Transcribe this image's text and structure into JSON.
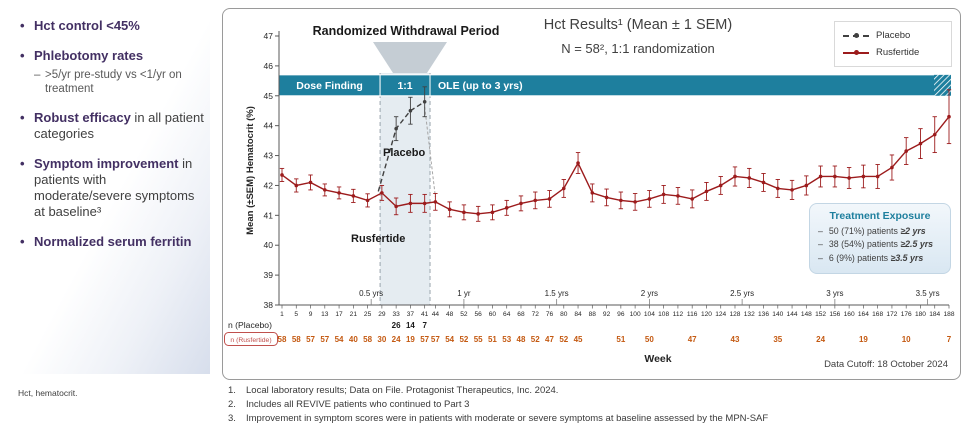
{
  "sidebar": {
    "bullets": [
      {
        "bold": "Hct control <45%",
        "rest": ""
      },
      {
        "bold": "Phlebotomy rates",
        "rest": "",
        "sub": ">5/yr pre-study vs <1/yr on treatment"
      },
      {
        "bold": "Robust efficacy",
        "rest": " in all patient categories"
      },
      {
        "bold": "Symptom improvement",
        "rest": " in patients with moderate/severe symptoms at baseline³"
      },
      {
        "bold": "Normalized serum ferritin",
        "rest": ""
      }
    ],
    "abbreviation": "Hct, hematocrit."
  },
  "chart": {
    "withdrawal_label": "Randomized Withdrawal Period",
    "legend": [
      {
        "name": "Placebo",
        "color": "#404040",
        "style": "dashed"
      },
      {
        "name": "Rusfertide",
        "color": "#9c1b1c",
        "style": "solid"
      }
    ],
    "annotations": {
      "placebo": "Placebo",
      "rusfertide": "Rusfertide"
    },
    "exposure": {
      "title": "Treatment Exposure",
      "items": [
        {
          "dash": "–",
          "text": "50 (71%) patients ",
          "em": "≥2 yrs"
        },
        {
          "dash": "–",
          "text": "38 (54%) patients ",
          "em": "≥2.5 yrs"
        },
        {
          "dash": "–",
          "text": "6 (9%) patients ",
          "em": "≥3.5 yrs"
        }
      ]
    }
  },
  "chart_data": {
    "type": "line",
    "title": "Hct Results¹ (Mean ± 1 SEM)",
    "subtitle": "N = 58², 1:1 randomization",
    "xlabel": "Week",
    "ylabel": "Mean (±SEM) Hematocrit (%)",
    "ylim": [
      38,
      47
    ],
    "y_ticks": [
      38,
      39,
      40,
      41,
      42,
      43,
      44,
      45,
      46,
      47
    ],
    "x_ticks": [
      1,
      5,
      9,
      13,
      17,
      21,
      25,
      29,
      33,
      37,
      41,
      44,
      48,
      52,
      56,
      60,
      64,
      68,
      72,
      76,
      80,
      84,
      88,
      92,
      96,
      100,
      104,
      108,
      112,
      116,
      120,
      124,
      128,
      132,
      136,
      140,
      144,
      148,
      152,
      156,
      160,
      164,
      168,
      172,
      176,
      180,
      184,
      188
    ],
    "year_marks": [
      [
        26,
        "0.5 yrs"
      ],
      [
        52,
        "1 yr"
      ],
      [
        78,
        "1.5 yrs"
      ],
      [
        104,
        "2 yrs"
      ],
      [
        130,
        "2.5 yrs"
      ],
      [
        156,
        "3 yrs"
      ],
      [
        182,
        "3.5 yrs"
      ]
    ],
    "phase_bar": {
      "color": "#1e7f9e",
      "y_range": [
        45.0,
        45.7
      ],
      "segments": [
        {
          "label": "Dose Finding",
          "start": 0,
          "end": 28.5,
          "align": "center"
        },
        {
          "label": "1:1",
          "start": 28.5,
          "end": 42.5,
          "align": "center"
        },
        {
          "label": "OLE (up to 3 yrs)",
          "start": 42.5,
          "end": 190,
          "align": "left"
        }
      ]
    },
    "withdrawal_region": {
      "start": 28.5,
      "end": 42.5
    },
    "series": [
      {
        "name": "Placebo",
        "color": "#404040",
        "dashed": true,
        "points": [
          [
            28,
            41.8,
            0
          ],
          [
            33,
            43.9,
            0.4
          ],
          [
            37,
            44.5,
            0.45
          ],
          [
            41,
            44.8,
            0.5
          ]
        ]
      },
      {
        "name": "Rusfertide",
        "color": "#9c1b1c",
        "dashed": false,
        "points": [
          [
            1,
            42.35,
            0.22
          ],
          [
            5,
            42.0,
            0.22
          ],
          [
            9,
            42.1,
            0.25
          ],
          [
            13,
            41.85,
            0.2
          ],
          [
            17,
            41.75,
            0.2
          ],
          [
            21,
            41.65,
            0.22
          ],
          [
            25,
            41.5,
            0.22
          ],
          [
            29,
            41.75,
            0.25
          ],
          [
            33,
            41.3,
            0.28
          ],
          [
            37,
            41.4,
            0.3
          ],
          [
            41,
            41.4,
            0.3
          ],
          [
            44,
            41.45,
            0.28
          ],
          [
            48,
            41.2,
            0.25
          ],
          [
            52,
            41.1,
            0.25
          ],
          [
            56,
            41.05,
            0.25
          ],
          [
            60,
            41.1,
            0.25
          ],
          [
            64,
            41.25,
            0.25
          ],
          [
            68,
            41.4,
            0.25
          ],
          [
            72,
            41.5,
            0.28
          ],
          [
            76,
            41.55,
            0.28
          ],
          [
            80,
            41.9,
            0.3
          ],
          [
            84,
            42.75,
            0.35
          ],
          [
            88,
            41.75,
            0.3
          ],
          [
            92,
            41.6,
            0.28
          ],
          [
            96,
            41.5,
            0.28
          ],
          [
            100,
            41.45,
            0.28
          ],
          [
            104,
            41.55,
            0.28
          ],
          [
            108,
            41.7,
            0.3
          ],
          [
            112,
            41.65,
            0.28
          ],
          [
            116,
            41.55,
            0.3
          ],
          [
            120,
            41.8,
            0.3
          ],
          [
            124,
            42.0,
            0.3
          ],
          [
            128,
            42.3,
            0.32
          ],
          [
            132,
            42.25,
            0.32
          ],
          [
            136,
            42.1,
            0.3
          ],
          [
            140,
            41.9,
            0.3
          ],
          [
            144,
            41.85,
            0.32
          ],
          [
            148,
            42.0,
            0.32
          ],
          [
            152,
            42.3,
            0.35
          ],
          [
            156,
            42.3,
            0.35
          ],
          [
            160,
            42.25,
            0.35
          ],
          [
            164,
            42.3,
            0.38
          ],
          [
            168,
            42.3,
            0.4
          ],
          [
            172,
            42.6,
            0.42
          ],
          [
            176,
            43.15,
            0.45
          ],
          [
            180,
            43.4,
            0.5
          ],
          [
            184,
            43.7,
            0.6
          ],
          [
            188,
            44.3,
            0.9
          ]
        ]
      }
    ],
    "n_rows": [
      {
        "label": "n (Placebo)",
        "label_color": "#262626",
        "value_color": "#1a1a1a",
        "boxed": false,
        "values": [
          [
            33,
            26
          ],
          [
            37,
            14
          ],
          [
            41,
            7
          ]
        ]
      },
      {
        "label": "n (Rusfertide)",
        "label_color": "#c0504d",
        "value_color": "#c45911",
        "boxed": true,
        "values": [
          [
            1,
            58
          ],
          [
            5,
            58
          ],
          [
            9,
            57
          ],
          [
            13,
            57
          ],
          [
            17,
            54
          ],
          [
            21,
            40
          ],
          [
            25,
            58
          ],
          [
            29,
            30
          ],
          [
            33,
            24
          ],
          [
            37,
            19
          ],
          [
            41,
            57
          ],
          [
            44,
            57
          ],
          [
            48,
            54
          ],
          [
            52,
            52
          ],
          [
            56,
            55
          ],
          [
            60,
            51
          ],
          [
            64,
            53
          ],
          [
            68,
            48
          ],
          [
            72,
            52
          ],
          [
            76,
            47
          ],
          [
            80,
            52
          ],
          [
            84,
            45
          ],
          [
            96,
            51
          ],
          [
            104,
            50
          ],
          [
            116,
            47
          ],
          [
            128,
            43
          ],
          [
            140,
            35
          ],
          [
            152,
            24
          ],
          [
            164,
            19
          ],
          [
            176,
            10
          ],
          [
            188,
            7
          ]
        ]
      }
    ],
    "data_cutoff": "Data Cutoff: 18 October 2024"
  },
  "footnotes": [
    {
      "num": "1.",
      "text": "Local laboratory results; Data on File. Protagonist Therapeutics, Inc. 2024."
    },
    {
      "num": "2.",
      "text": "Includes all REVIVE patients who continued to Part 3"
    },
    {
      "num": "3.",
      "text": "Improvement in symptom scores were in patients with moderate or severe symptoms at baseline assessed by the MPN-SAF"
    }
  ]
}
